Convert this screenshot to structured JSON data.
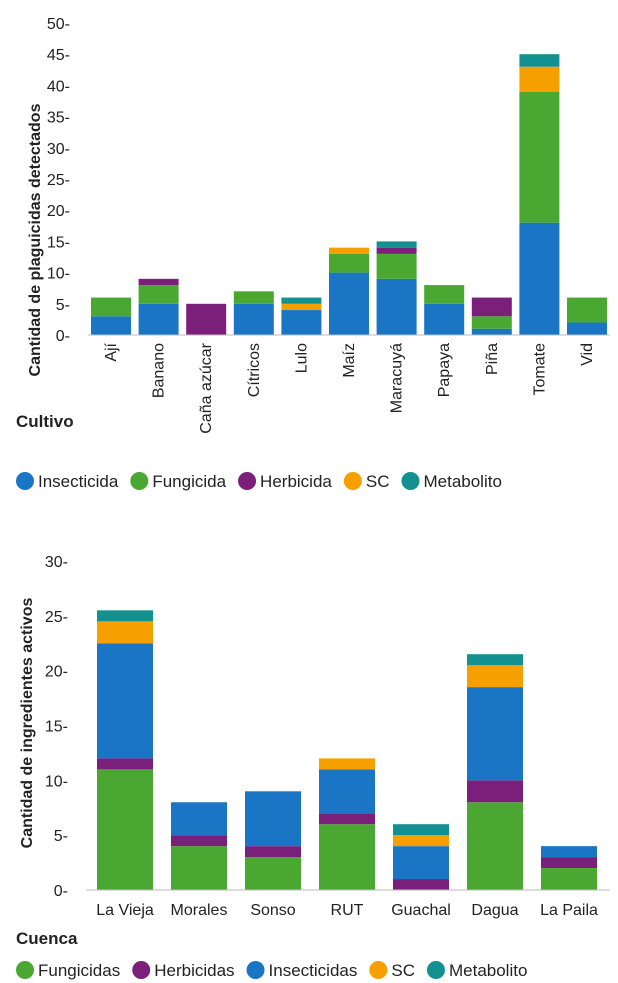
{
  "chart_data": [
    {
      "type": "bar",
      "stacked": true,
      "xlabel": "Cultivo",
      "ylabel": "Cantidad de plaguicidas detectados",
      "ylim": [
        0,
        50
      ],
      "yticks": [
        "0-",
        "5-",
        "10-",
        "15-",
        "20-",
        "25-",
        "30-",
        "35-",
        "40-",
        "45-",
        "50-"
      ],
      "categories": [
        "Ají",
        "Banano",
        "Caña azúcar",
        "Cítricos",
        "Lulo",
        "Maíz",
        "Maracuyá",
        "Papaya",
        "Piña",
        "Tomate",
        "Vid"
      ],
      "series": [
        {
          "name": "Insecticida",
          "color": "#1a75c4",
          "values": [
            3,
            5,
            0,
            5,
            4,
            10,
            9,
            5,
            1,
            18,
            2
          ]
        },
        {
          "name": "Fungicida",
          "color": "#4aa832",
          "values": [
            3,
            3,
            0,
            2,
            0,
            3,
            4,
            3,
            2,
            21,
            4
          ]
        },
        {
          "name": "Herbicida",
          "color": "#7a1f7a",
          "values": [
            0,
            1,
            5,
            0,
            0,
            0,
            1,
            0,
            3,
            0,
            0
          ]
        },
        {
          "name": "SC",
          "color": "#f6a000",
          "values": [
            0,
            0,
            0,
            0,
            1,
            1,
            0,
            0,
            0,
            4,
            0
          ]
        },
        {
          "name": "Metabolito",
          "color": "#139090",
          "values": [
            0,
            0,
            0,
            0,
            1,
            0,
            1,
            0,
            0,
            2,
            0
          ]
        }
      ],
      "legend_position": "bottom"
    },
    {
      "type": "bar",
      "stacked": true,
      "xlabel": "Cuenca",
      "ylabel": "Cantidad de ingredientes activos",
      "ylim": [
        0,
        30
      ],
      "yticks": [
        "0-",
        "5-",
        "10-",
        "15-",
        "20-",
        "25-",
        "30-"
      ],
      "categories": [
        "La Vieja",
        "Morales",
        "Sonso",
        "RUT",
        "Guachal",
        "Dagua",
        "La Paila"
      ],
      "series": [
        {
          "name": "Fungicidas",
          "color": "#4aa832",
          "values": [
            11,
            4,
            3,
            6,
            0,
            8,
            2
          ]
        },
        {
          "name": "Herbicidas",
          "color": "#7a1f7a",
          "values": [
            1,
            1,
            1,
            1,
            1,
            2,
            1
          ]
        },
        {
          "name": "Insecticidas",
          "color": "#1a75c4",
          "values": [
            10.5,
            3,
            5,
            4,
            3,
            8.5,
            1
          ]
        },
        {
          "name": "SC",
          "color": "#f6a000",
          "values": [
            2,
            0,
            0,
            1,
            1,
            2,
            0
          ]
        },
        {
          "name": "Metabolito",
          "color": "#139090",
          "values": [
            1,
            0,
            0,
            0,
            1,
            1,
            0
          ]
        }
      ],
      "legend_position": "bottom"
    }
  ]
}
